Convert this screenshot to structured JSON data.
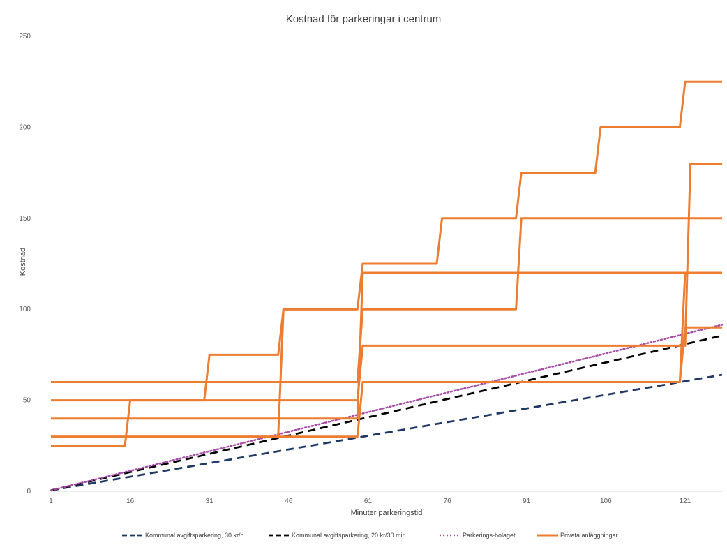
{
  "chart_data": {
    "type": "line",
    "title": "Kostnad för parkeringar i centrum",
    "xlabel": "Minuter parkeringstid",
    "ylabel": "Kostnad",
    "xlim": [
      1,
      128
    ],
    "ylim": [
      0,
      250
    ],
    "x_ticks": [
      "1",
      "16",
      "31",
      "46",
      "61",
      "76",
      "91",
      "106",
      "121"
    ],
    "y_ticks": [
      "0",
      "50",
      "100",
      "150",
      "200",
      "250"
    ],
    "grid": false,
    "legend_position": "bottom",
    "series": [
      {
        "name": "Kommunal avgiftsparkering, 30 kr/h",
        "style": "dashed",
        "color": "#1F3864",
        "points": [
          [
            1,
            0.5
          ],
          [
            128,
            64
          ]
        ]
      },
      {
        "name": "Kommunal avgiftsparkering, 20 kr/30 min",
        "style": "dashed",
        "color": "#000000",
        "points": [
          [
            1,
            0.5
          ],
          [
            128,
            85.5
          ]
        ]
      },
      {
        "name": "Parkerings-bolaget",
        "style": "dotted",
        "color": "#A64CA6",
        "points": [
          [
            1,
            0.5
          ],
          [
            128,
            91.5
          ]
        ]
      },
      {
        "name": "Privata anläggningar",
        "style": "solid",
        "color": "#ED7D31",
        "lines": [
          [
            [
              1,
              25
            ],
            [
              15,
              25
            ],
            [
              16,
              50
            ],
            [
              59,
              50
            ],
            [
              60,
              80
            ],
            [
              121,
              80
            ],
            [
              122,
              180
            ],
            [
              128,
              180
            ]
          ],
          [
            [
              1,
              30
            ],
            [
              59,
              30
            ],
            [
              60,
              60
            ],
            [
              120,
              60
            ],
            [
              121,
              90
            ],
            [
              128,
              90
            ]
          ],
          [
            [
              1,
              40
            ],
            [
              59,
              40
            ],
            [
              60,
              120
            ],
            [
              128,
              120
            ]
          ],
          [
            [
              1,
              50
            ],
            [
              30,
              50
            ],
            [
              31,
              75
            ],
            [
              44,
              75
            ],
            [
              45,
              100
            ],
            [
              59,
              100
            ],
            [
              60,
              125
            ],
            [
              74,
              125
            ],
            [
              75,
              150
            ],
            [
              89,
              150
            ],
            [
              90,
              175
            ],
            [
              104,
              175
            ],
            [
              105,
              200
            ],
            [
              120,
              200
            ],
            [
              121,
              225
            ],
            [
              128,
              225
            ]
          ],
          [
            [
              1,
              60
            ],
            [
              59,
              60
            ],
            [
              60,
              100
            ],
            [
              89,
              100
            ],
            [
              90,
              150
            ],
            [
              128,
              150
            ]
          ],
          [
            [
              1,
              30
            ],
            [
              44,
              30
            ],
            [
              45,
              100
            ],
            [
              59,
              100
            ]
          ],
          [
            [
              89,
              60
            ],
            [
              120,
              60
            ],
            [
              121,
              120
            ],
            [
              128,
              120
            ]
          ]
        ]
      }
    ]
  }
}
